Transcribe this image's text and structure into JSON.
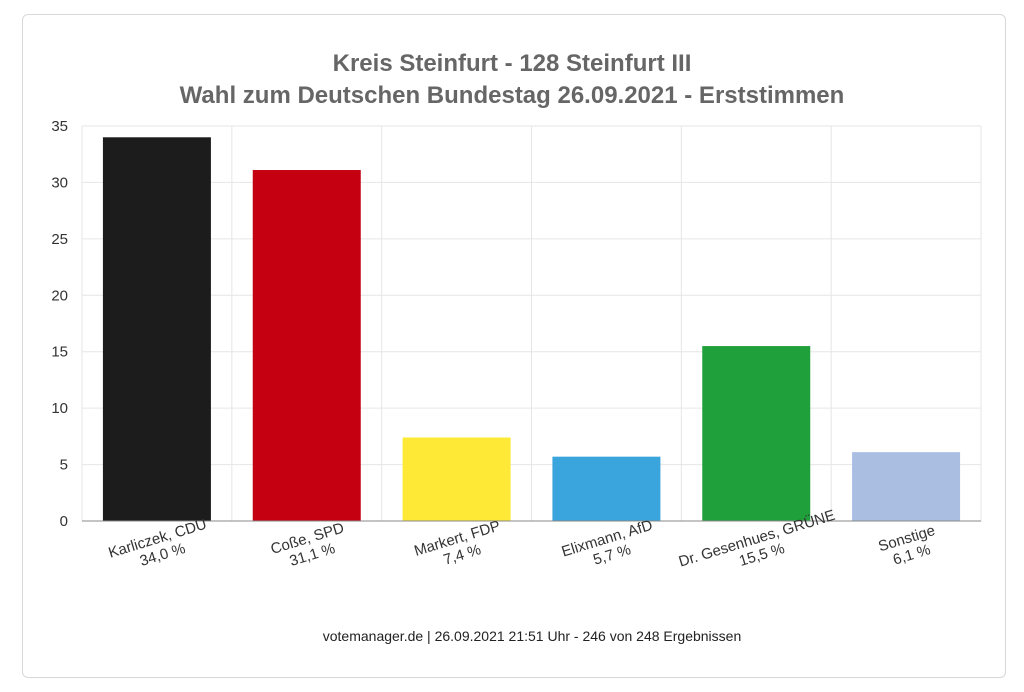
{
  "chart_data": {
    "type": "bar",
    "title_lines": [
      "Kreis Steinfurt - 128 Steinfurt III",
      "Wahl zum Deutschen Bundestag 26.09.2021  - Erststimmen"
    ],
    "categories": [
      [
        "Karliczek, CDU",
        "34,0 %"
      ],
      [
        "Coße, SPD",
        "31,1 %"
      ],
      [
        "Markert, FDP",
        "7,4 %"
      ],
      [
        "Elixmann, AfD",
        "5,7 %"
      ],
      [
        "Dr. Gesenhues, GRÜNE",
        "15,5 %"
      ],
      [
        "Sonstige",
        "6,1 %"
      ]
    ],
    "values": [
      34.0,
      31.1,
      7.4,
      5.7,
      15.5,
      6.1
    ],
    "colors": [
      "#1c1c1c",
      "#c40011",
      "#fde936",
      "#3aa4dc",
      "#20a03a",
      "#a9bee1"
    ],
    "ylim": [
      0,
      35
    ],
    "yticks": [
      "0",
      "5",
      "10",
      "15",
      "20",
      "25",
      "30",
      "35"
    ],
    "grid": true,
    "xlabel": "",
    "ylabel": ""
  },
  "footer": "votemanager.de | 26.09.2021 21:51 Uhr - 246 von 248 Ergebnissen"
}
